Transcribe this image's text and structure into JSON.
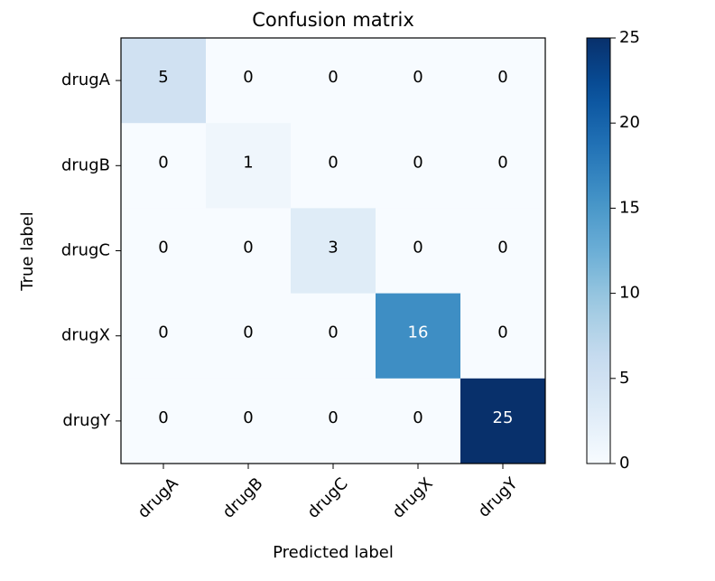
{
  "chart_data": {
    "type": "heatmap",
    "title": "Confusion matrix",
    "xlabel": "Predicted label",
    "ylabel": "True label",
    "x_categories": [
      "drugA",
      "drugB",
      "drugC",
      "drugX",
      "drugY"
    ],
    "y_categories": [
      "drugA",
      "drugB",
      "drugC",
      "drugX",
      "drugY"
    ],
    "values": [
      [
        5,
        0,
        0,
        0,
        0
      ],
      [
        0,
        1,
        0,
        0,
        0
      ],
      [
        0,
        0,
        3,
        0,
        0
      ],
      [
        0,
        0,
        0,
        16,
        0
      ],
      [
        0,
        0,
        0,
        0,
        25
      ]
    ],
    "colorscale": "Blues",
    "zlim": [
      0,
      25
    ],
    "colorbar_ticks": [
      "0",
      "5",
      "10",
      "15",
      "20",
      "25"
    ],
    "grid": false,
    "colorbar_position": "right"
  }
}
